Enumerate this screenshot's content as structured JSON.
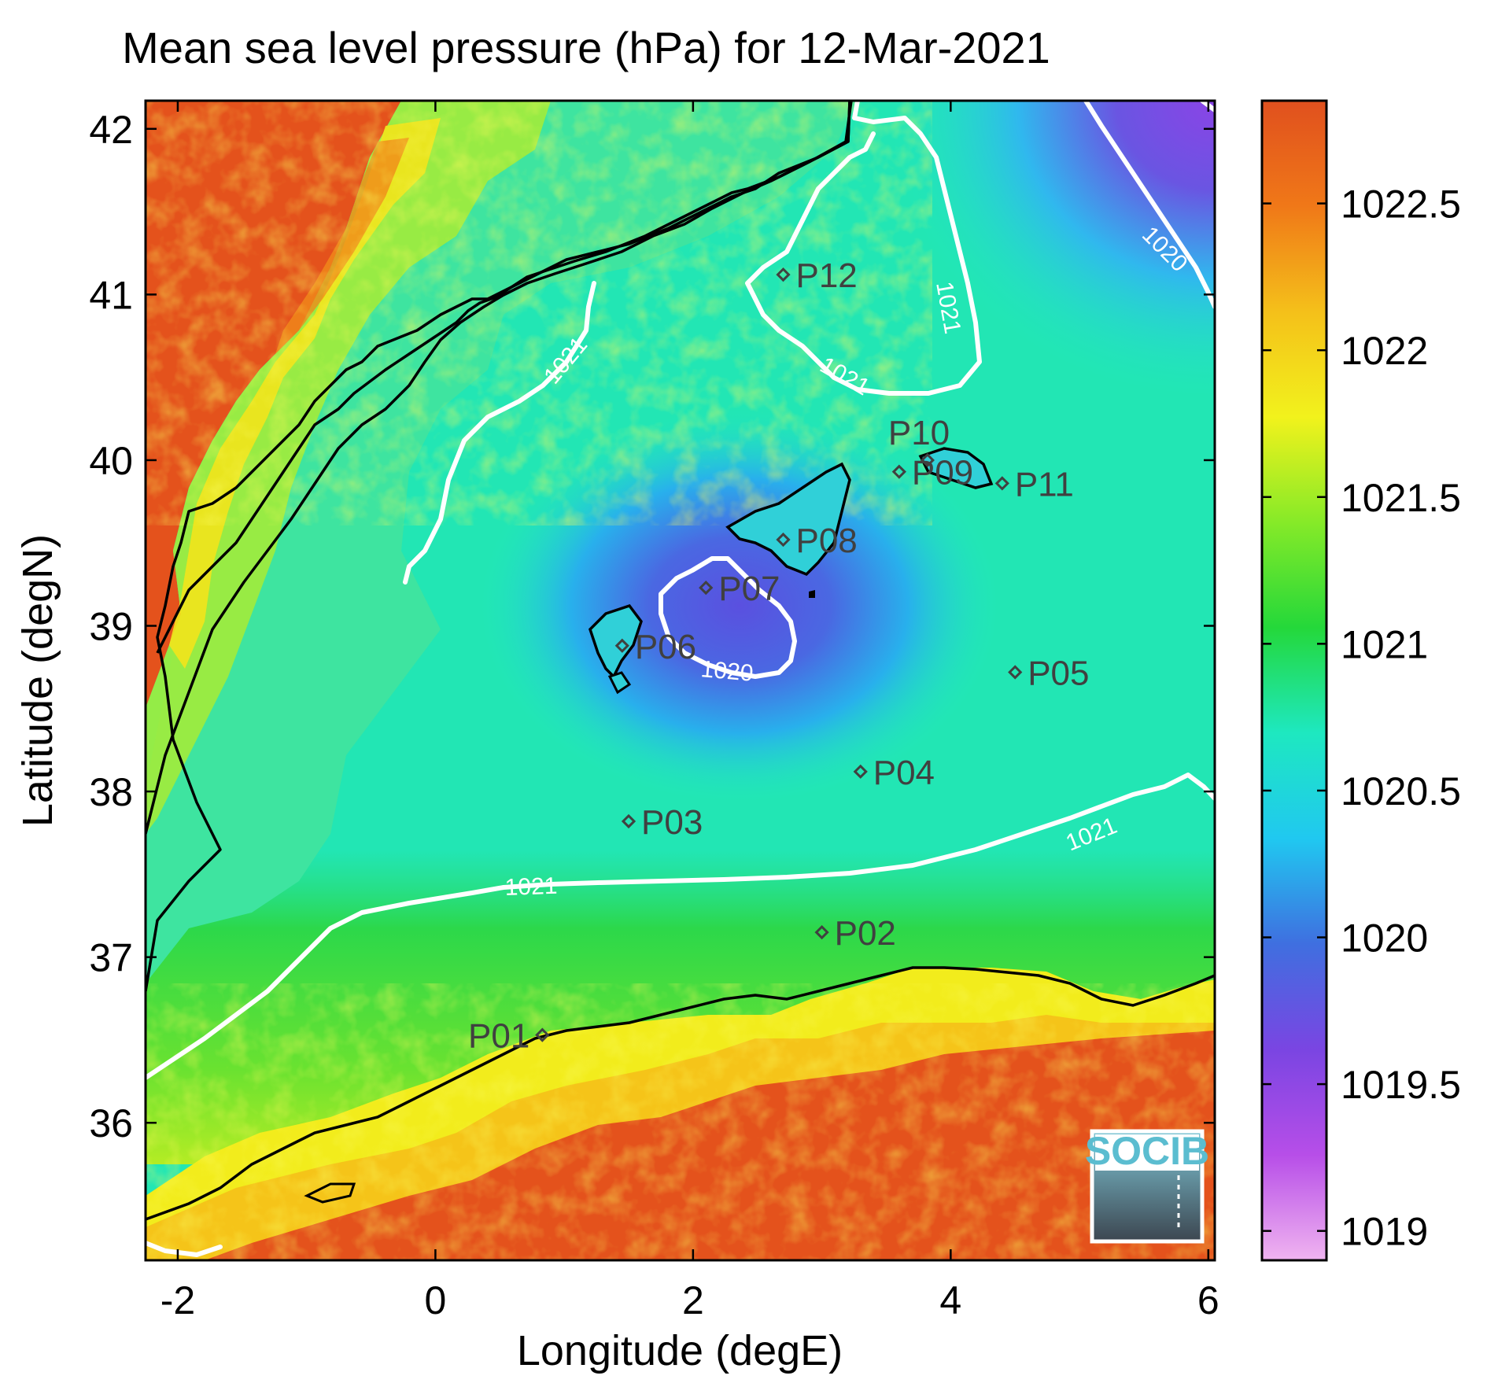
{
  "title": "Mean sea level pressure (hPa) for 12-Mar-2021",
  "map": {
    "xlabel": "Longitude (degE)",
    "ylabel": "Latitude (degN)",
    "xlim": [
      -2.25,
      6.05
    ],
    "ylim": [
      35.17,
      42.17
    ],
    "xticks": [
      -2,
      0,
      2,
      4,
      6
    ],
    "yticks": [
      36,
      37,
      38,
      39,
      40,
      41,
      42
    ],
    "xtick_labels": [
      "-2",
      "0",
      "2",
      "4",
      "6"
    ],
    "ytick_labels": [
      "36",
      "37",
      "38",
      "39",
      "40",
      "41",
      "42"
    ]
  },
  "colorbar": {
    "range": [
      1018.9,
      1022.85
    ],
    "ticks": [
      1019,
      1019.5,
      1020,
      1020.5,
      1021,
      1021.5,
      1022,
      1022.5
    ],
    "tick_labels": [
      "1019",
      "1019.5",
      "1020",
      "1020.5",
      "1021",
      "1021.5",
      "1022",
      "1022.5"
    ],
    "colormap": [
      "#f0b4f0",
      "#b74ee8",
      "#7a45e2",
      "#3f6fe0",
      "#20c8f0",
      "#1ee8c0",
      "#24d83a",
      "#86ea28",
      "#f2f21c",
      "#f4c01a",
      "#f07818",
      "#e0501e"
    ]
  },
  "stations": [
    {
      "id": "P01",
      "lon": 0.83,
      "lat": 36.53
    },
    {
      "id": "P02",
      "lon": 3.0,
      "lat": 37.15
    },
    {
      "id": "P03",
      "lon": 1.5,
      "lat": 37.82
    },
    {
      "id": "P04",
      "lon": 3.3,
      "lat": 38.12
    },
    {
      "id": "P05",
      "lon": 4.5,
      "lat": 38.72
    },
    {
      "id": "P06",
      "lon": 1.45,
      "lat": 38.88
    },
    {
      "id": "P07",
      "lon": 2.1,
      "lat": 39.23
    },
    {
      "id": "P08",
      "lon": 2.7,
      "lat": 39.52
    },
    {
      "id": "P09",
      "lon": 3.6,
      "lat": 39.93
    },
    {
      "id": "P10",
      "lon": 3.82,
      "lat": 40.0
    },
    {
      "id": "P11",
      "lon": 4.4,
      "lat": 39.86
    },
    {
      "id": "P12",
      "lon": 2.7,
      "lat": 41.12
    }
  ],
  "contour_labels": [
    "1021",
    "1021",
    "1021",
    "1020",
    "1020",
    "1021",
    "1021"
  ],
  "logo": {
    "text": "SOCIB"
  }
}
